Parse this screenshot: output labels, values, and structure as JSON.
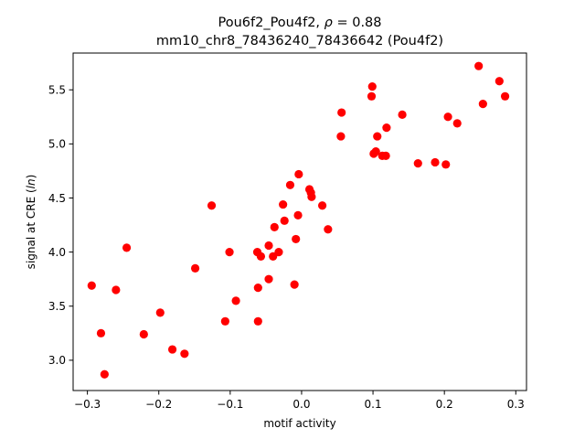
{
  "chart_data": {
    "type": "scatter",
    "title_line1_prefix": "Pou6f2_Pou4f2, ",
    "title_rho_symbol": "ρ",
    "title_rho_value": " = 0.88",
    "title_line2": "mm10_chr8_78436240_78436642 (Pou4f2)",
    "xlabel": "motif activity",
    "ylabel_prefix": "signal at CRE (",
    "ylabel_italic": "ln",
    "ylabel_suffix": ")",
    "xlim": [
      -0.32,
      0.315
    ],
    "ylim": [
      2.72,
      5.84
    ],
    "xticks": [
      -0.3,
      -0.2,
      -0.1,
      0.0,
      0.1,
      0.2,
      0.3
    ],
    "xtick_labels": [
      "−0.3",
      "−0.2",
      "−0.1",
      "0.0",
      "0.1",
      "0.2",
      "0.3"
    ],
    "yticks": [
      3.0,
      3.5,
      4.0,
      4.5,
      5.0,
      5.5
    ],
    "ytick_labels": [
      "3.0",
      "3.5",
      "4.0",
      "4.5",
      "5.0",
      "5.5"
    ],
    "grid": false,
    "marker_color": "#ff0000",
    "points": [
      {
        "x": -0.294,
        "y": 3.69
      },
      {
        "x": -0.281,
        "y": 3.25
      },
      {
        "x": -0.276,
        "y": 2.87
      },
      {
        "x": -0.26,
        "y": 3.65
      },
      {
        "x": -0.245,
        "y": 4.04
      },
      {
        "x": -0.221,
        "y": 3.24
      },
      {
        "x": -0.198,
        "y": 3.44
      },
      {
        "x": -0.181,
        "y": 3.1
      },
      {
        "x": -0.164,
        "y": 3.06
      },
      {
        "x": -0.149,
        "y": 3.85
      },
      {
        "x": -0.126,
        "y": 4.43
      },
      {
        "x": -0.107,
        "y": 3.36
      },
      {
        "x": -0.101,
        "y": 4.0
      },
      {
        "x": -0.092,
        "y": 3.55
      },
      {
        "x": -0.062,
        "y": 4.0
      },
      {
        "x": -0.061,
        "y": 3.67
      },
      {
        "x": -0.061,
        "y": 3.36
      },
      {
        "x": -0.057,
        "y": 3.96
      },
      {
        "x": -0.046,
        "y": 4.06
      },
      {
        "x": -0.046,
        "y": 3.75
      },
      {
        "x": -0.04,
        "y": 3.96
      },
      {
        "x": -0.038,
        "y": 4.23
      },
      {
        "x": -0.032,
        "y": 4.0
      },
      {
        "x": -0.026,
        "y": 4.44
      },
      {
        "x": -0.024,
        "y": 4.29
      },
      {
        "x": -0.016,
        "y": 4.62
      },
      {
        "x": -0.01,
        "y": 3.7
      },
      {
        "x": -0.008,
        "y": 4.12
      },
      {
        "x": -0.005,
        "y": 4.34
      },
      {
        "x": -0.004,
        "y": 4.72
      },
      {
        "x": 0.011,
        "y": 4.58
      },
      {
        "x": 0.013,
        "y": 4.55
      },
      {
        "x": 0.014,
        "y": 4.51
      },
      {
        "x": 0.029,
        "y": 4.43
      },
      {
        "x": 0.037,
        "y": 4.21
      },
      {
        "x": 0.055,
        "y": 5.07
      },
      {
        "x": 0.056,
        "y": 5.29
      },
      {
        "x": 0.098,
        "y": 5.44
      },
      {
        "x": 0.099,
        "y": 5.53
      },
      {
        "x": 0.101,
        "y": 4.91
      },
      {
        "x": 0.104,
        "y": 4.93
      },
      {
        "x": 0.106,
        "y": 5.07
      },
      {
        "x": 0.113,
        "y": 4.89
      },
      {
        "x": 0.118,
        "y": 4.89
      },
      {
        "x": 0.119,
        "y": 5.15
      },
      {
        "x": 0.141,
        "y": 5.27
      },
      {
        "x": 0.163,
        "y": 4.82
      },
      {
        "x": 0.187,
        "y": 4.83
      },
      {
        "x": 0.202,
        "y": 4.81
      },
      {
        "x": 0.205,
        "y": 5.25
      },
      {
        "x": 0.218,
        "y": 5.19
      },
      {
        "x": 0.248,
        "y": 5.72
      },
      {
        "x": 0.254,
        "y": 5.37
      },
      {
        "x": 0.277,
        "y": 5.58
      },
      {
        "x": 0.285,
        "y": 5.44
      }
    ]
  }
}
